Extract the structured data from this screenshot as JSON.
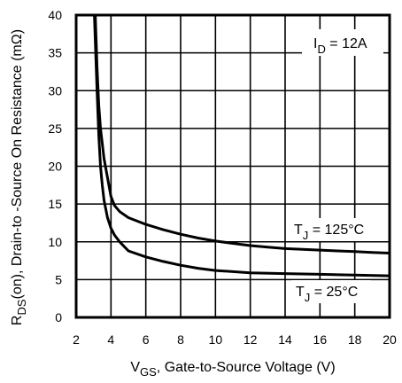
{
  "chart_data": {
    "type": "line",
    "xlabel_main": "V",
    "xlabel_sub": "GS",
    "xlabel_rest": ", Gate-to-Source Voltage (V)",
    "ylabel_main": "R",
    "ylabel_sub": "DS",
    "ylabel_rest": "(on),  Drain-to -Source On Resistance (mΩ)",
    "xlim": [
      2,
      20
    ],
    "ylim": [
      0,
      40
    ],
    "xticks": [
      "2",
      "4",
      "6",
      "8",
      "10",
      "12",
      "14",
      "16",
      "18",
      "20"
    ],
    "yticks": [
      "0",
      "5",
      "10",
      "15",
      "20",
      "25",
      "30",
      "35",
      "40"
    ],
    "grid": true,
    "annotations": {
      "id": {
        "main": "I",
        "sub": "D",
        "rest": " = 12A"
      },
      "t125": {
        "main": "T",
        "sub": "J",
        "rest": " = 125°C"
      },
      "t25": {
        "main": "T",
        "sub": "J",
        "rest": " = 25°C"
      }
    },
    "series": [
      {
        "condition": "125°C",
        "x": [
          3.1,
          3.2,
          3.3,
          3.4,
          3.5,
          3.6,
          3.8,
          4.0,
          4.2,
          4.5,
          5.0,
          6.0,
          7.0,
          8.0,
          9.0,
          10.0,
          11.0,
          12.0,
          13.0,
          14.0,
          15.0,
          16.0,
          17.0,
          18.0,
          19.0,
          20.0
        ],
        "y": [
          40.0,
          33.0,
          28.0,
          25.0,
          23.0,
          21.0,
          18.5,
          16.0,
          14.8,
          14.0,
          13.2,
          12.3,
          11.6,
          11.0,
          10.5,
          10.1,
          9.8,
          9.5,
          9.3,
          9.1,
          9.0,
          8.9,
          8.8,
          8.7,
          8.6,
          8.5
        ]
      },
      {
        "condition": "25°C",
        "x": [
          3.05,
          3.2,
          3.3,
          3.4,
          3.5,
          3.6,
          3.8,
          4.0,
          4.2,
          4.5,
          5.0,
          6.0,
          7.0,
          8.0,
          9.0,
          10.0,
          12.0,
          14.0,
          16.0,
          18.0,
          20.0
        ],
        "y": [
          40.0,
          30.0,
          24.0,
          20.0,
          17.5,
          15.5,
          13.2,
          11.8,
          10.9,
          10.0,
          8.8,
          8.0,
          7.4,
          6.9,
          6.5,
          6.2,
          5.9,
          5.8,
          5.7,
          5.6,
          5.5
        ]
      }
    ]
  }
}
